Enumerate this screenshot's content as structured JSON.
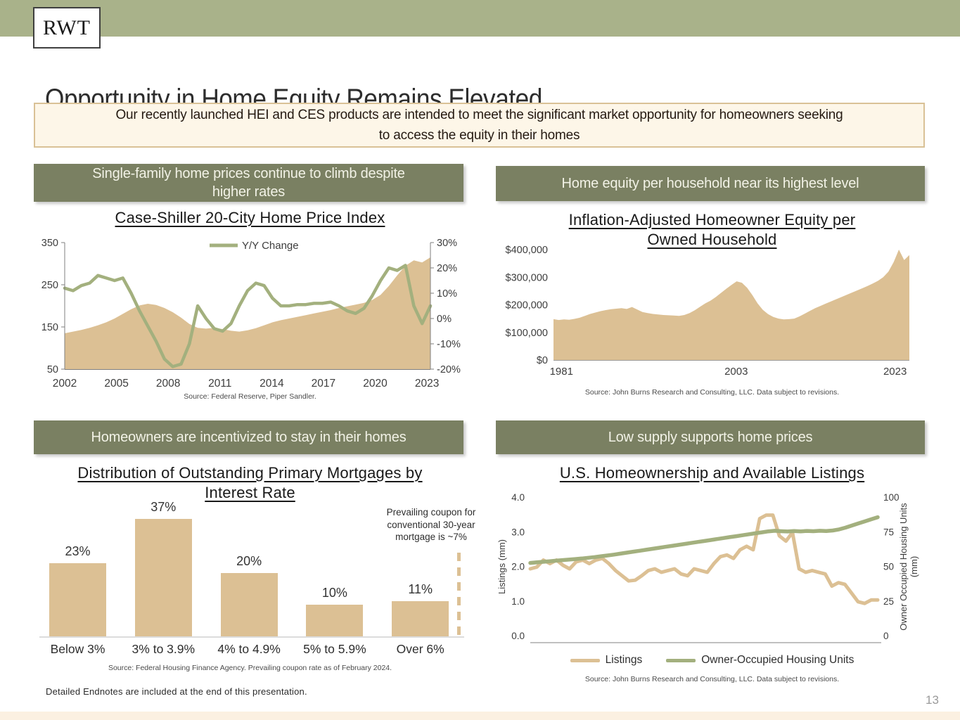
{
  "logo": {
    "text": "RWT"
  },
  "title": "Opportunity in Home Equity Remains Elevated",
  "intro": "Our recently launched HEI and CES products are intended to meet the significant market opportunity for homeowners seeking to access the equity in their homes",
  "footer": "Detailed Endnotes are included at the end of this presentation.",
  "page": {
    "number": "13"
  },
  "colors": {
    "banner": "#a9b28a",
    "panel_header": "#7a8062",
    "tan": "#dcc094",
    "olive": "#a3b07e",
    "intro_bg": "#fdf6e8",
    "intro_border": "#d9c196",
    "bottom_strip": "#fbf0e1"
  },
  "panels": [
    {
      "header": "Single-family home prices continue to climb despite higher rates",
      "chart_title": "Case-Shiller 20-City Home Price Index",
      "source": "Source: Federal Reserve, Piper Sandler."
    },
    {
      "header": "Home equity per household near its highest level",
      "chart_title": "Inflation-Adjusted Homeowner Equity per Owned Household",
      "source": "Source: John Burns Research and Consulting, LLC. Data subject to revisions."
    },
    {
      "header": "Homeowners are incentivized to stay in their homes",
      "chart_title": "Distribution of Outstanding Primary Mortgages by Interest Rate",
      "source": "Source: Federal Housing Finance Agency. Prevailing coupon rate as of February 2024.",
      "annotation": "Prevailing coupon for conventional 30-year mortgage is ~7%"
    },
    {
      "header": "Low supply supports home prices",
      "chart_title": "U.S. Homeownership and Available Listings",
      "source": "Source: John Burns Research and Consulting, LLC. Data subject to revisions."
    }
  ],
  "chart_data": [
    {
      "type": "area",
      "title": "Case-Shiller 20-City Home Price Index",
      "x_range": [
        2002,
        2023.2
      ],
      "x_ticks": [
        "2002",
        "2005",
        "2008",
        "2011",
        "2014",
        "2017",
        "2020",
        "2023"
      ],
      "left_axis": {
        "range": [
          50,
          350
        ],
        "ticks": [
          "350",
          "250",
          "150",
          "50"
        ]
      },
      "right_axis": {
        "range": [
          -20,
          30
        ],
        "ticks": [
          "30%",
          "20%",
          "10%",
          "0%",
          "-10%",
          "-20%"
        ]
      },
      "legend": [
        {
          "label": "Y/Y Change",
          "color": "#a3b07e"
        }
      ],
      "series": [
        {
          "name": "Home Price Index",
          "style": "area",
          "axis": "left",
          "color": "#dcc094",
          "values": [
            135,
            139,
            143,
            148,
            154,
            161,
            170,
            181,
            192,
            201,
            205,
            202,
            195,
            185,
            172,
            157,
            148,
            146,
            148,
            145,
            141,
            139,
            142,
            147,
            154,
            161,
            166,
            170,
            174,
            178,
            182,
            186,
            190,
            195,
            199,
            203,
            207,
            214,
            226,
            247,
            272,
            295,
            308,
            303,
            315
          ]
        },
        {
          "name": "Y/Y Change",
          "style": "line",
          "axis": "right",
          "color": "#a3b07e",
          "values": [
            12,
            11,
            13,
            14,
            17,
            16,
            15,
            16,
            10,
            3,
            -3,
            -9,
            -16,
            -19,
            -18,
            -10,
            5,
            0,
            -4,
            -5,
            -2,
            5,
            11,
            14,
            13,
            8,
            5,
            5,
            5.5,
            5.5,
            6,
            6,
            6.5,
            5,
            3,
            2,
            4,
            9,
            15,
            20,
            19,
            21,
            5,
            -2,
            5
          ]
        }
      ]
    },
    {
      "type": "area",
      "title": "Inflation-Adjusted Homeowner Equity per Owned Household",
      "x_range": [
        1980,
        2024.8
      ],
      "x_ticks": [
        "1981",
        "2003",
        "2023"
      ],
      "left_axis": {
        "range": [
          0,
          400000
        ],
        "ticks": [
          "$400,000",
          "$300,000",
          "$200,000",
          "$100,000",
          "$0"
        ]
      },
      "series": [
        {
          "name": "Homeowner Equity per Owned Household",
          "style": "area",
          "axis": "left",
          "color": "#dcc094",
          "values": [
            148,
            145,
            147,
            146,
            149,
            153,
            160,
            167,
            172,
            177,
            181,
            184,
            186,
            188,
            185,
            192,
            183,
            174,
            170,
            167,
            165,
            163,
            162,
            161,
            160,
            163,
            170,
            180,
            193,
            205,
            215,
            228,
            243,
            258,
            272,
            285,
            280,
            262,
            235,
            205,
            182,
            166,
            156,
            150,
            147,
            148,
            150,
            158,
            168,
            178,
            188,
            196,
            204,
            212,
            220,
            228,
            236,
            244,
            252,
            260,
            268,
            277,
            287,
            300,
            320,
            355,
            400,
            362,
            380
          ],
          "value_unit": "thousand_dollars"
        }
      ]
    },
    {
      "type": "bar",
      "title": "Distribution of Outstanding Primary Mortgages by Interest Rate",
      "categories": [
        "Below 3%",
        "3% to 3.9%",
        "4% to 4.9%",
        "5% to 5.9%",
        "Over 6%"
      ],
      "values": [
        23,
        37,
        20,
        10,
        11
      ],
      "labels": [
        "23%",
        "37%",
        "20%",
        "10%",
        "11%"
      ],
      "bar_color": "#dcc094",
      "annotation": "Prevailing coupon for conventional 30-year mortgage is ~7%"
    },
    {
      "type": "line",
      "title": "U.S. Homeownership and Available Listings",
      "left_axis": {
        "range": [
          0,
          4
        ],
        "ticks": [
          "4.0",
          "3.0",
          "2.0",
          "1.0",
          "0.0"
        ],
        "label": "Listings (mm)"
      },
      "right_axis": {
        "range": [
          0,
          100
        ],
        "ticks": [
          "100",
          "75",
          "50",
          "25",
          "0"
        ],
        "label_lines": [
          "Owner Occupied Housing Units",
          "(mm)"
        ]
      },
      "legend": [
        {
          "label": "Listings",
          "color": "#dcc094"
        },
        {
          "label": "Owner-Occupied Housing Units",
          "color": "#a3b07e"
        }
      ],
      "series": [
        {
          "name": "Listings",
          "axis": "left",
          "color": "#dcc094",
          "values": [
            1.95,
            2.0,
            2.2,
            2.1,
            2.2,
            2.05,
            1.95,
            2.15,
            2.2,
            2.1,
            2.2,
            2.25,
            2.1,
            1.9,
            1.75,
            1.6,
            1.62,
            1.75,
            1.9,
            1.95,
            1.85,
            1.9,
            1.95,
            1.8,
            1.75,
            1.95,
            1.9,
            1.85,
            2.1,
            2.3,
            2.35,
            2.25,
            2.5,
            2.6,
            2.5,
            3.4,
            3.5,
            3.5,
            2.9,
            2.75,
            3.0,
            1.95,
            1.85,
            1.9,
            1.85,
            1.8,
            1.45,
            1.55,
            1.5,
            1.25,
            1.0,
            0.95,
            1.05,
            1.05
          ]
        },
        {
          "name": "Owner-Occupied Housing Units",
          "axis": "right",
          "color": "#a3b07e",
          "values": [
            53,
            53.4,
            53.8,
            54.2,
            54.6,
            55,
            55.4,
            55.8,
            56.2,
            56.7,
            57.2,
            57.8,
            58.4,
            59,
            59.7,
            60.4,
            61.1,
            61.8,
            62.5,
            63.2,
            63.9,
            64.6,
            65.3,
            66,
            66.7,
            67.4,
            68.1,
            68.8,
            69.5,
            70.2,
            70.9,
            71.6,
            72.3,
            73,
            73.7,
            74.4,
            75.1,
            75.8,
            76.2,
            75.9,
            75.7,
            76,
            75.8,
            76.1,
            75.9,
            76.2,
            76,
            76.4,
            77.2,
            78.5,
            80,
            81.5,
            83,
            84.5,
            86
          ]
        }
      ]
    }
  ]
}
